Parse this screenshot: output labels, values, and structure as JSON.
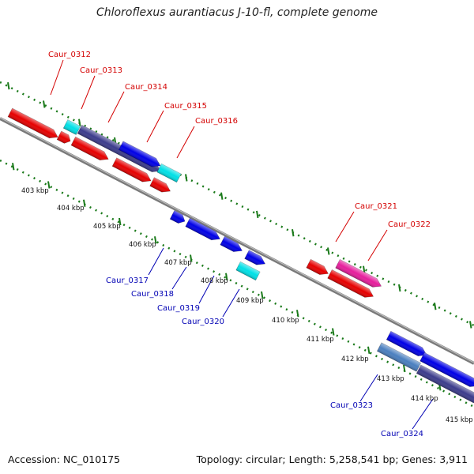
{
  "title": "Chloroflexus aurantiacus J-10-fl, complete genome",
  "accession": "Accession: NC_010175",
  "summary": "Topology: circular; Length: 5,258,541 bp; Genes: 3,911",
  "colors": {
    "forward_label": "#d40000",
    "reverse_label": "#0000b4",
    "red": "#e60000",
    "cyan": "#00e0e6",
    "navy": "#3c3c8c",
    "blue": "#0000e6",
    "magenta": "#e61e9c",
    "steel": "#4a7fbf",
    "backbone": "#8c8c8c",
    "tick_dots": "#1a7a1a"
  },
  "forward_labels": [
    "Caur_0312",
    "Caur_0313",
    "Caur_0314",
    "Caur_0315",
    "Caur_0316",
    "Caur_0321",
    "Caur_0322"
  ],
  "reverse_labels": [
    "Caur_0317",
    "Caur_0318",
    "Caur_0319",
    "Caur_0320",
    "Caur_0323",
    "Caur_0324"
  ],
  "kbp_labels": [
    "403 kbp",
    "404 kbp",
    "405 kbp",
    "406 kbp",
    "407 kbp",
    "408 kbp",
    "409 kbp",
    "410 kbp",
    "411 kbp",
    "412 kbp",
    "413 kbp",
    "414 kbp",
    "415 kbp"
  ]
}
